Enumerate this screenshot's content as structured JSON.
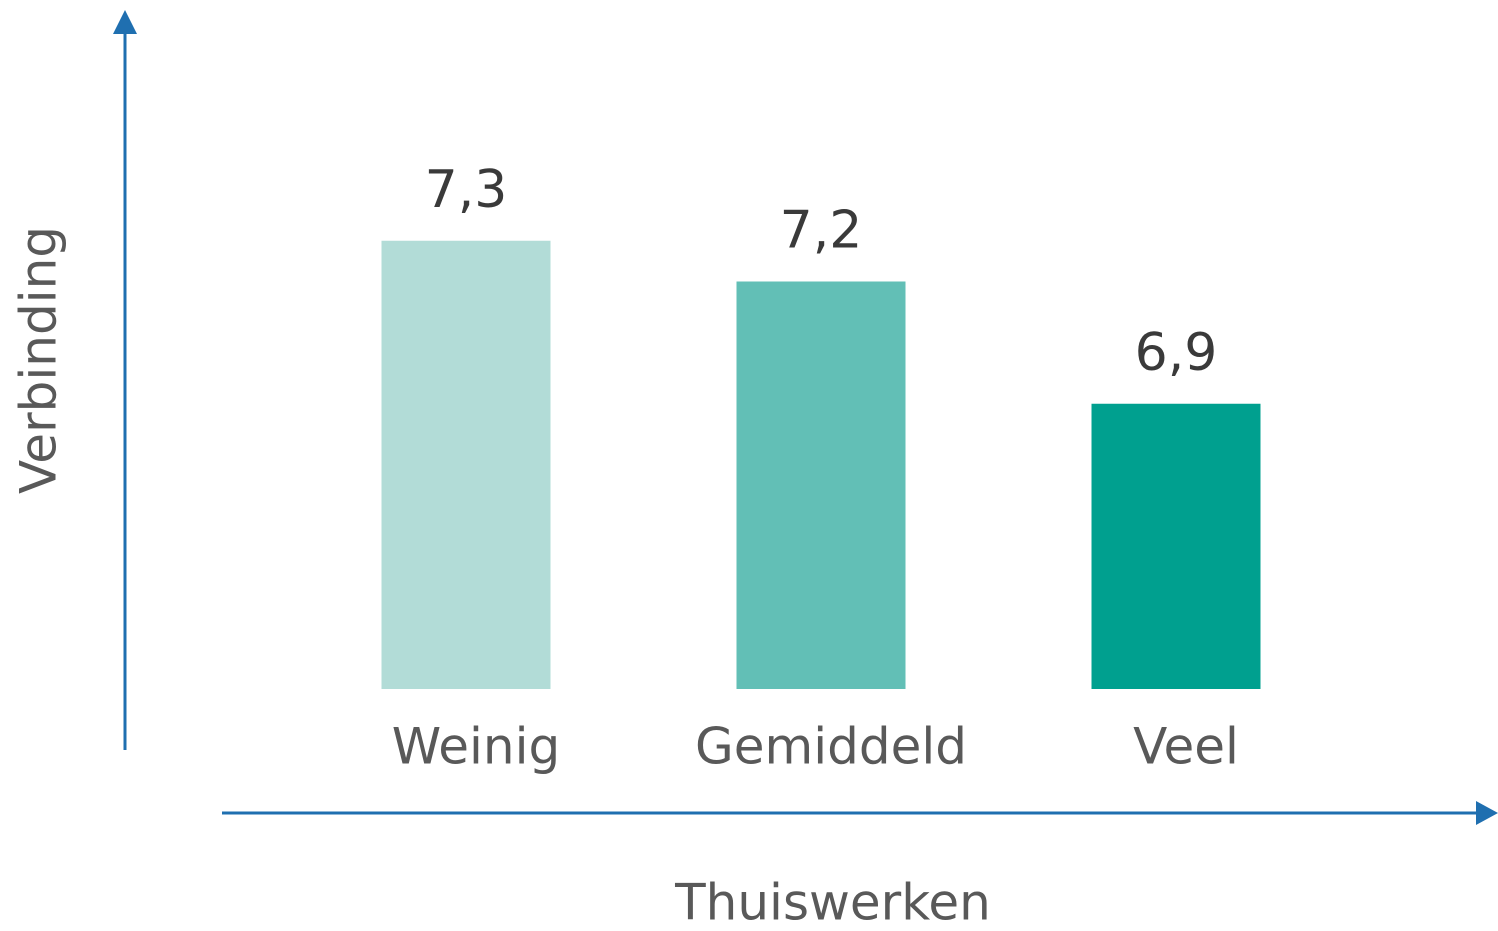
{
  "chart_data": {
    "type": "bar",
    "x_label": "Thuiswerken",
    "y_label": "Verbinding",
    "categories": [
      "Weinig",
      "Gemiddeld",
      "Veel"
    ],
    "values": [
      7.3,
      7.2,
      6.9
    ],
    "value_labels": [
      "7,3",
      "7,2",
      "6,9"
    ],
    "colors": [
      "#b2dcd7",
      "#62bfb6",
      "#00a08f"
    ],
    "ylim": [
      6.2,
      7.4
    ],
    "grid": false
  }
}
